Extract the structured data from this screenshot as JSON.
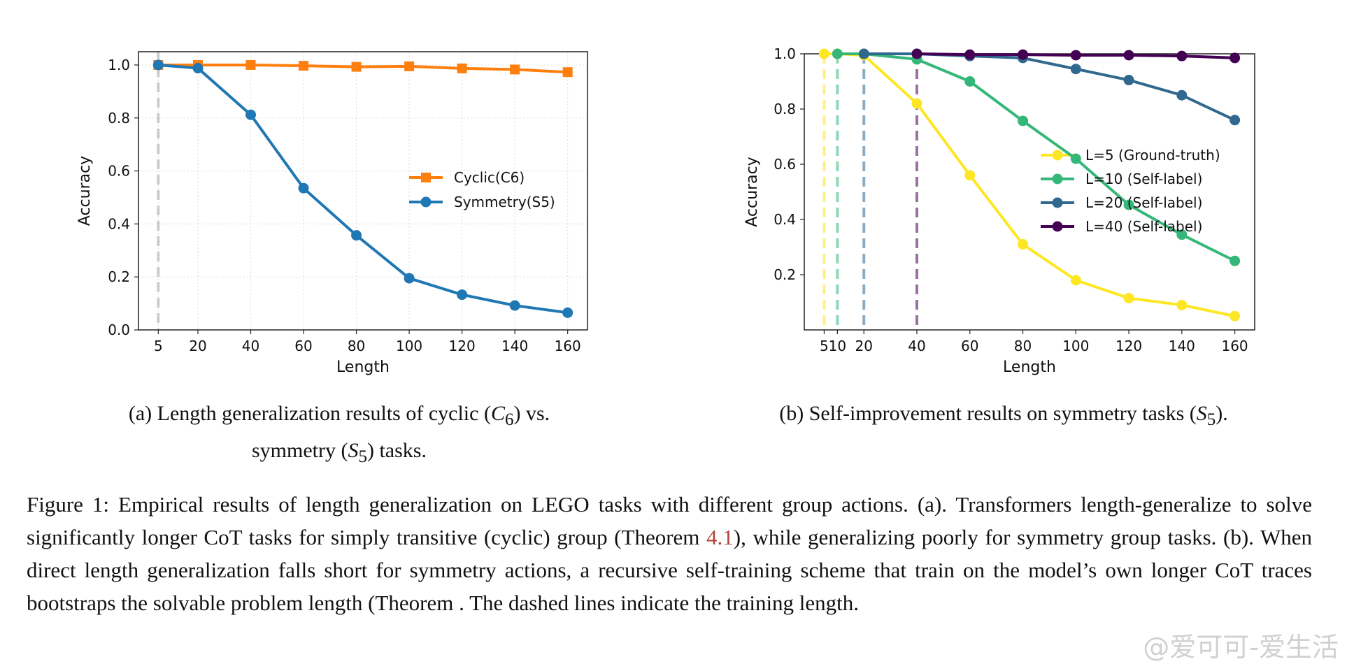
{
  "chart_data": [
    {
      "type": "line",
      "title": "",
      "xlabel": "Length",
      "ylabel": "Accuracy",
      "x": [
        5,
        20,
        40,
        60,
        80,
        100,
        120,
        140,
        160
      ],
      "x_ticks": [
        5,
        20,
        40,
        60,
        80,
        100,
        120,
        140,
        160
      ],
      "y_ticks": [
        "0.0",
        "0.2",
        "0.4",
        "0.6",
        "0.8",
        "1.0"
      ],
      "xlim": [
        -2.5,
        167.5
      ],
      "ylim": [
        0.0,
        1.05
      ],
      "grid": true,
      "legend_position": "center-right",
      "series": [
        {
          "name": "Cyclic(C6)",
          "color": "#ff7f0e",
          "marker": "square",
          "values": [
            1.0,
            1.0,
            1.0,
            0.997,
            0.993,
            0.995,
            0.987,
            0.983,
            0.973
          ]
        },
        {
          "name": "Symmetry(S5)",
          "color": "#1f77b4",
          "marker": "circle",
          "values": [
            1.0,
            0.988,
            0.812,
            0.535,
            0.357,
            0.195,
            0.133,
            0.092,
            0.065
          ]
        }
      ],
      "vlines": [
        {
          "x": 5,
          "color": "#a9a9a9"
        }
      ]
    },
    {
      "type": "line",
      "title": "",
      "xlabel": "Length",
      "ylabel": "Accuracy",
      "x": [
        5,
        10,
        20,
        40,
        60,
        80,
        100,
        120,
        140,
        160
      ],
      "x_ticks": [
        "5",
        "10",
        "20",
        "40",
        "60",
        "80",
        "100",
        "120",
        "140",
        "160"
      ],
      "y_ticks": [
        "0.2",
        "0.4",
        "0.6",
        "0.8",
        "1.0"
      ],
      "xlim": [
        -2.5,
        167.5
      ],
      "ylim": [
        0.0,
        1.0
      ],
      "grid": false,
      "legend_position": "center-right",
      "series": [
        {
          "name": "L=5 (Ground-truth)",
          "color": "#fde725",
          "start_x": 5,
          "values": [
            1.0,
            1.0,
            0.995,
            0.82,
            0.56,
            0.31,
            0.18,
            0.115,
            0.09,
            0.05
          ]
        },
        {
          "name": "L=10 (Self-label)",
          "color": "#35b779",
          "start_x": 10,
          "values": [
            null,
            1.0,
            1.0,
            0.98,
            0.9,
            0.757,
            0.62,
            0.453,
            0.345,
            0.25
          ]
        },
        {
          "name": "L=20 (Self-label)",
          "color": "#31688e",
          "start_x": 20,
          "values": [
            null,
            null,
            1.0,
            1.0,
            0.992,
            0.985,
            0.945,
            0.905,
            0.85,
            0.76
          ]
        },
        {
          "name": "L=40 (Self-label)",
          "color": "#440154",
          "start_x": 40,
          "values": [
            null,
            null,
            null,
            1.0,
            0.997,
            0.997,
            0.995,
            0.995,
            0.992,
            0.985
          ]
        }
      ],
      "vlines": [
        {
          "x": 5,
          "color": "#fde725"
        },
        {
          "x": 10,
          "color": "#35b779"
        },
        {
          "x": 20,
          "color": "#31688e"
        },
        {
          "x": 40,
          "color": "#440154"
        }
      ]
    }
  ],
  "captions": {
    "a_label": "(a) Length generalization results of cyclic (",
    "a_math1": "C",
    "a_sub1": "6",
    "a_mid": ") vs.",
    "a_line2_pre": "symmetry (",
    "a_math2": "S",
    "a_sub2": "5",
    "a_line2_post": ") tasks.",
    "b_pre": "(b) Self-improvement results on symmetry tasks (",
    "b_math": "S",
    "b_sub": "5",
    "b_post": ")."
  },
  "figure_caption": {
    "part1": "Figure 1: Empirical results of length generalization on LEGO tasks with different group actions. (a). Transformers length-generalize to solve significantly longer CoT tasks for simply transitive (cyclic) group (Theorem ",
    "ref": "4.1",
    "part2": "), while generalizing poorly for symmetry group tasks. (b). When direct length generalization falls short for symmetry actions, a recursive self-training scheme that train on the model’s own longer CoT traces bootstraps the solvable problem length (Theorem ",
    "part3": ". The dashed lines indicate the training length."
  },
  "watermark": "@爱可可-爱生活"
}
